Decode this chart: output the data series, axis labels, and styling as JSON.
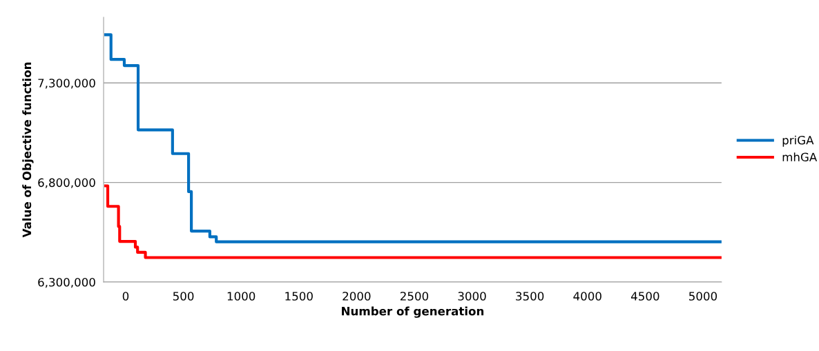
{
  "chart_data": {
    "type": "line",
    "xlabel": "Number of generation",
    "ylabel": "Value of Objective function",
    "xlim": [
      -191,
      5161
    ],
    "xticks": [
      0,
      500,
      1000,
      1500,
      2000,
      2500,
      3000,
      3500,
      4000,
      4500,
      5000
    ],
    "ylim": [
      6300000,
      7630000
    ],
    "yticks": [
      {
        "value": 6300000,
        "label": "6,300,000"
      },
      {
        "value": 6800000,
        "label": "6,800,000"
      },
      {
        "value": 7300000,
        "label": "7,300,000"
      }
    ],
    "grid": "y",
    "legend": "right",
    "line_style": "solid",
    "marker": "none",
    "series": [
      {
        "name": "priGA",
        "color": "#0070c0",
        "x": [
          -173,
          -127,
          -127,
          -12,
          -12,
          108,
          108,
          406,
          406,
          545,
          545,
          569,
          569,
          729,
          729,
          785,
          785,
          5155
        ],
        "values": [
          7542000,
          7542000,
          7418000,
          7418000,
          7387000,
          7387000,
          7064000,
          7064000,
          6945000,
          6945000,
          6754000,
          6754000,
          6556000,
          6556000,
          6527000,
          6527000,
          6502000,
          6502000
        ]
      },
      {
        "name": "mhGA",
        "color": "#ff0000",
        "x": [
          -173,
          -173,
          -155,
          -155,
          -62,
          -62,
          -52,
          -52,
          84,
          84,
          103,
          103,
          171,
          171,
          5155
        ],
        "values": [
          6783000,
          6783000,
          6783000,
          6680000,
          6680000,
          6579000,
          6579000,
          6504000,
          6504000,
          6475000,
          6475000,
          6449000,
          6449000,
          6423000,
          6423000
        ]
      }
    ]
  }
}
